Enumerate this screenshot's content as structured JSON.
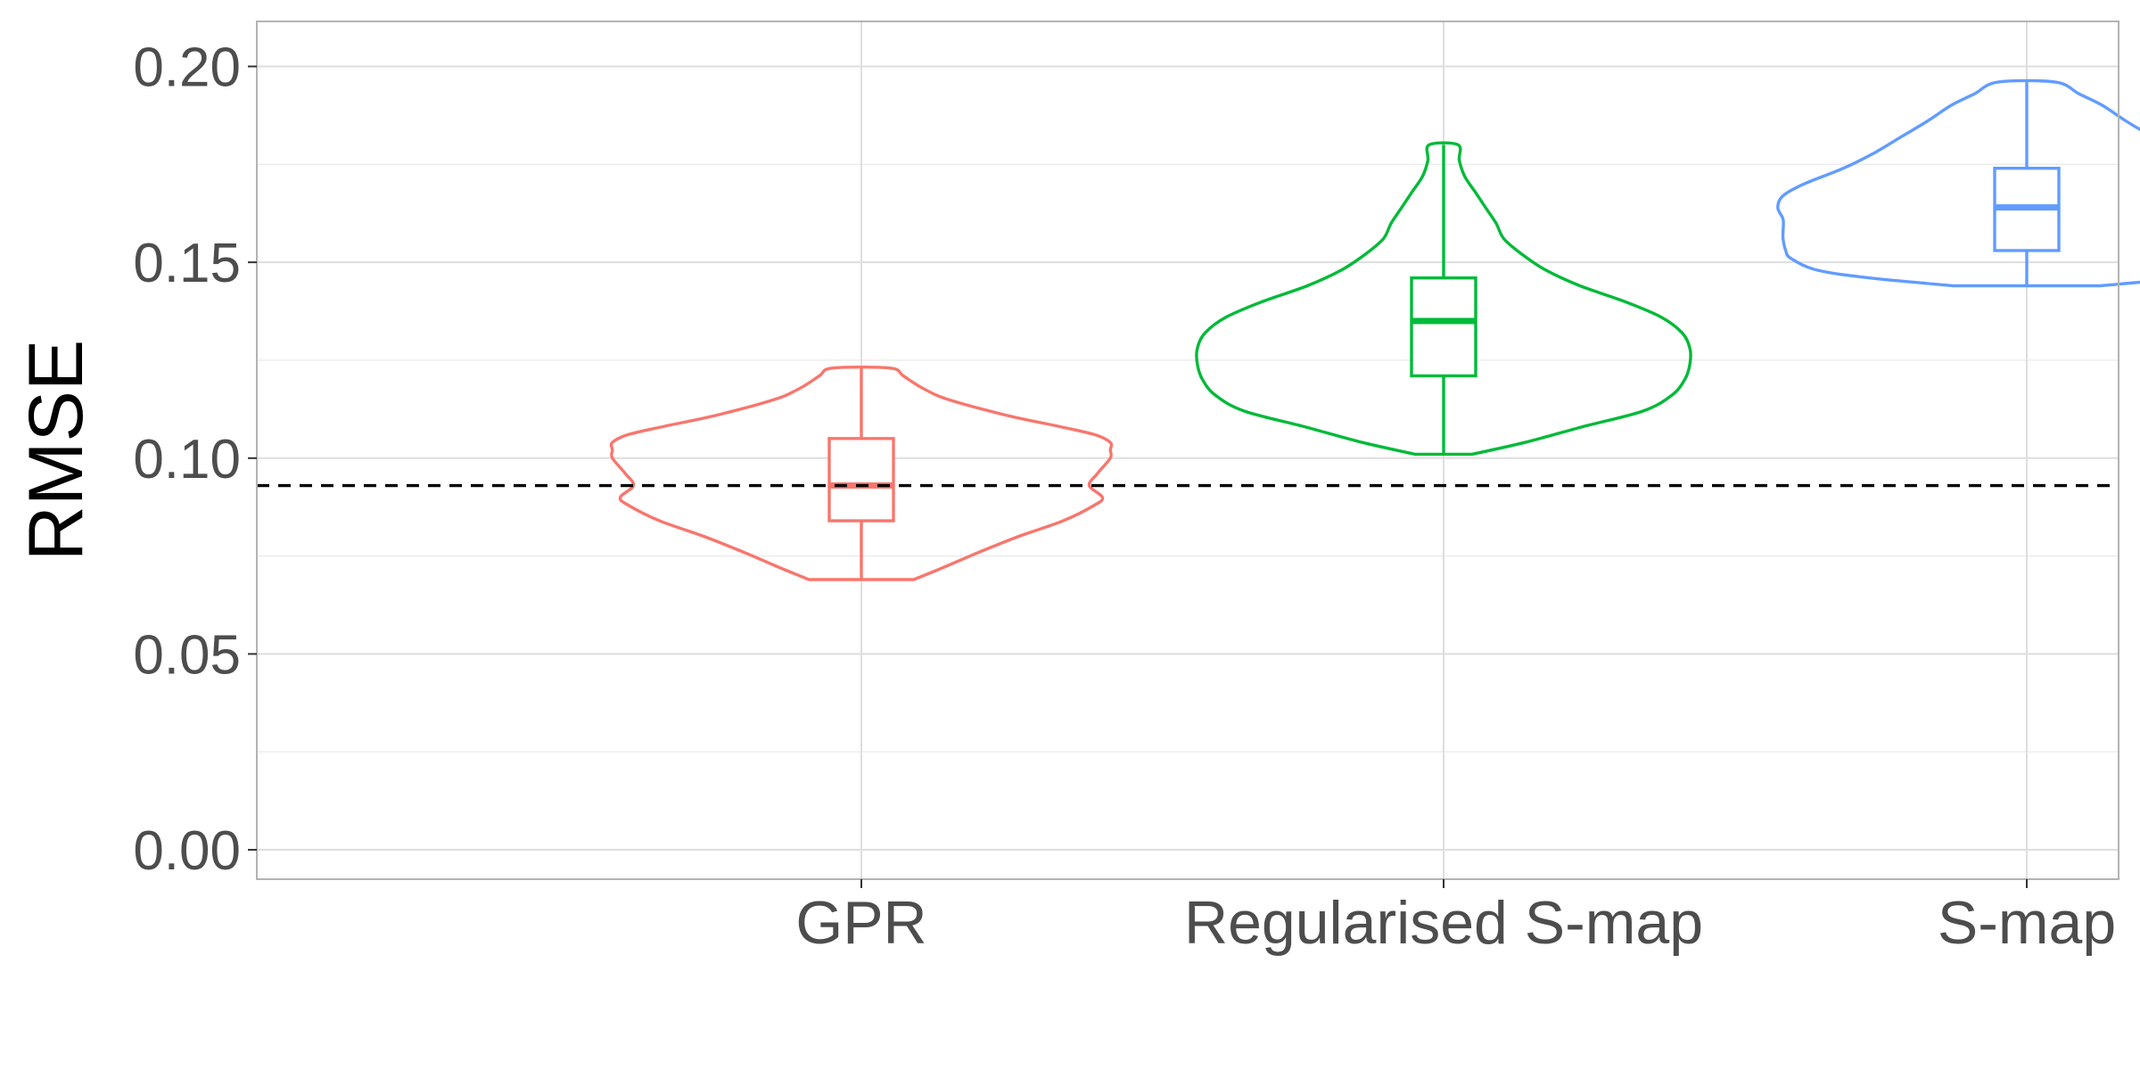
{
  "chart_data": {
    "type": "violin",
    "xlabel": "",
    "ylabel": "RMSE",
    "ylim": [
      -0.0075,
      0.2115
    ],
    "y_ticks": [
      0.0,
      0.05,
      0.1,
      0.15,
      0.2
    ],
    "y_tick_labels": [
      "0.00",
      "0.05",
      "0.10",
      "0.15",
      "0.20"
    ],
    "y_minor_ticks": [
      0.025,
      0.075,
      0.125,
      0.175
    ],
    "grid": true,
    "legend": "none",
    "reference_line": {
      "y": 0.093,
      "style": "dashed",
      "color": "#000000"
    },
    "categories": [
      "GPR",
      "Regularised S-map",
      "S-map"
    ],
    "series": [
      {
        "category": "GPR",
        "color": "#F8766D",
        "box": {
          "min": 0.069,
          "q1": 0.084,
          "median": 0.093,
          "q3": 0.105,
          "max": 0.123
        },
        "density": [
          [
            0.069,
            0.2
          ],
          [
            0.072,
            0.31
          ],
          [
            0.076,
            0.45
          ],
          [
            0.08,
            0.6
          ],
          [
            0.084,
            0.77
          ],
          [
            0.088,
            0.89
          ],
          [
            0.09,
            0.92
          ],
          [
            0.093,
            0.87
          ],
          [
            0.096,
            0.9
          ],
          [
            0.1,
            0.95
          ],
          [
            0.102,
            0.95
          ],
          [
            0.104,
            0.95
          ],
          [
            0.106,
            0.89
          ],
          [
            0.108,
            0.76
          ],
          [
            0.111,
            0.55
          ],
          [
            0.115,
            0.33
          ],
          [
            0.118,
            0.23
          ],
          [
            0.121,
            0.16
          ],
          [
            0.123,
            0.11
          ]
        ]
      },
      {
        "category": "Regularised S-map",
        "color": "#00BA38",
        "box": {
          "min": 0.101,
          "q1": 0.121,
          "median": 0.135,
          "q3": 0.146,
          "max": 0.18
        },
        "density": [
          [
            0.101,
            0.11
          ],
          [
            0.104,
            0.31
          ],
          [
            0.108,
            0.53
          ],
          [
            0.112,
            0.76
          ],
          [
            0.116,
            0.87
          ],
          [
            0.12,
            0.92
          ],
          [
            0.124,
            0.94
          ],
          [
            0.128,
            0.94
          ],
          [
            0.132,
            0.91
          ],
          [
            0.136,
            0.83
          ],
          [
            0.14,
            0.69
          ],
          [
            0.144,
            0.52
          ],
          [
            0.148,
            0.39
          ],
          [
            0.152,
            0.3
          ],
          [
            0.156,
            0.23
          ],
          [
            0.16,
            0.2
          ],
          [
            0.164,
            0.16
          ],
          [
            0.168,
            0.12
          ],
          [
            0.172,
            0.08
          ],
          [
            0.176,
            0.06
          ],
          [
            0.18,
            0.055
          ]
        ]
      },
      {
        "category": "S-map",
        "color": "#619CFF",
        "box": {
          "min": 0.144,
          "q1": 0.153,
          "median": 0.164,
          "q3": 0.174,
          "max": 0.196
        },
        "density": [
          [
            0.144,
            0.28
          ],
          [
            0.146,
            0.6
          ],
          [
            0.148,
            0.8
          ],
          [
            0.151,
            0.9
          ],
          [
            0.153,
            0.92
          ],
          [
            0.156,
            0.93
          ],
          [
            0.158,
            0.93
          ],
          [
            0.161,
            0.93
          ],
          [
            0.164,
            0.95
          ],
          [
            0.167,
            0.93
          ],
          [
            0.17,
            0.85
          ],
          [
            0.174,
            0.7
          ],
          [
            0.178,
            0.58
          ],
          [
            0.182,
            0.48
          ],
          [
            0.186,
            0.38
          ],
          [
            0.19,
            0.29
          ],
          [
            0.193,
            0.2
          ],
          [
            0.196,
            0.11
          ]
        ]
      }
    ]
  }
}
